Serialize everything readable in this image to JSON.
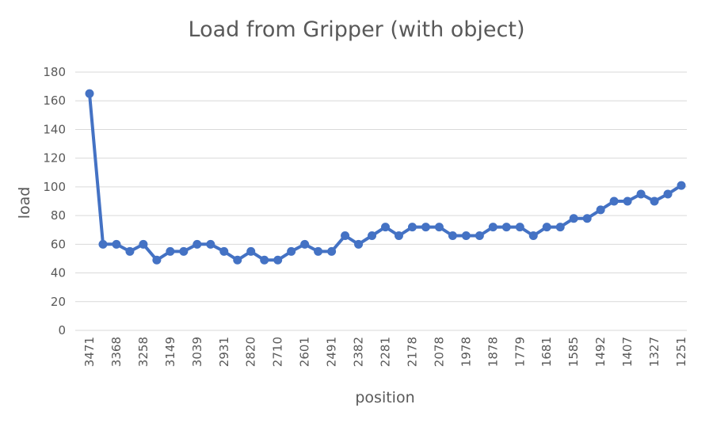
{
  "chart_data": {
    "type": "line",
    "title": "Load from Gripper (with object)",
    "xlabel": "position",
    "ylabel": "load",
    "ylim": [
      0,
      180
    ],
    "ytick_step": 20,
    "grid": true,
    "legend": "none",
    "series_color": "#4472C4",
    "grid_color": "#D9D9D9",
    "x_tick_labels": [
      "3471",
      "3368",
      "3258",
      "3149",
      "3039",
      "2931",
      "2820",
      "2710",
      "2601",
      "2491",
      "2382",
      "2281",
      "2178",
      "2078",
      "1978",
      "1878",
      "1779",
      "1681",
      "1585",
      "1492",
      "1407",
      "1327",
      "1251"
    ],
    "series": [
      {
        "values": [
          165,
          60,
          60,
          55,
          60,
          49,
          55,
          55,
          60,
          60,
          55,
          49,
          55,
          49,
          49,
          55,
          60,
          55,
          55,
          66,
          60,
          66,
          72,
          66,
          72,
          72,
          72,
          66,
          66,
          66,
          72,
          72,
          72,
          66,
          72,
          72,
          78,
          78,
          84,
          90,
          90,
          95,
          90,
          95,
          101
        ]
      }
    ]
  }
}
